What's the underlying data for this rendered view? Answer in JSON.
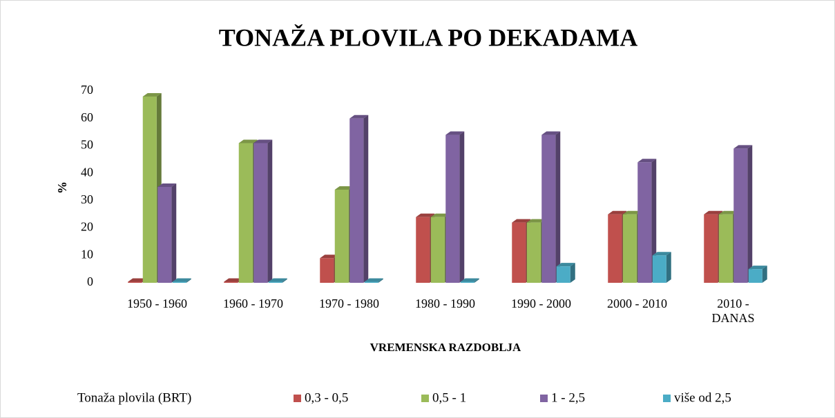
{
  "chart_data": {
    "type": "bar3d",
    "title": "TONAŽA PLOVILA PO DEKADAMA",
    "x_label": "VREMENSKA RAZDOBLJA",
    "y_label": "%",
    "legend_title": "Tonaža plovila (BRT)",
    "legend_position": "bottom",
    "categories": [
      "1950 - 1960",
      "1960 - 1970",
      "1970 - 1980",
      "1980 - 1990",
      "1990 - 2000",
      "2000 - 2010",
      "2010 - DANAS"
    ],
    "series": [
      {
        "name": "0,3 - 0,5",
        "color": "#c0504d",
        "values": [
          0,
          0,
          9,
          24,
          22,
          25,
          25
        ]
      },
      {
        "name": "0,5 - 1",
        "color": "#9bbb59",
        "values": [
          68,
          51,
          34,
          24,
          22,
          25,
          25
        ]
      },
      {
        "name": "1 - 2,5",
        "color": "#8064a2",
        "values": [
          35,
          51,
          60,
          54,
          54,
          44,
          49
        ]
      },
      {
        "name": "više od 2,5",
        "color": "#4bacc6",
        "values": [
          0,
          0,
          0,
          0,
          6,
          10,
          5
        ]
      }
    ],
    "ylim": [
      0,
      70
    ],
    "yticks": [
      0,
      10,
      20,
      30,
      40,
      50,
      60,
      70
    ]
  }
}
